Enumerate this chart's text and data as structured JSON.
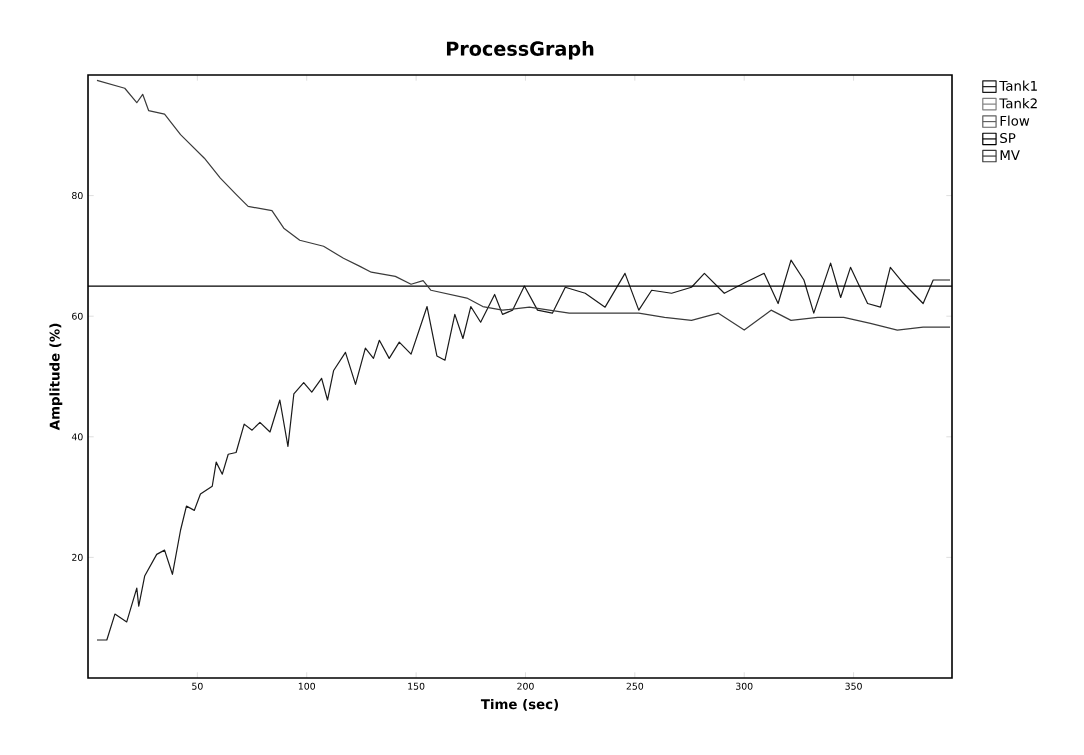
{
  "chart_data": {
    "type": "line",
    "title": "ProcessGraph",
    "xlabel": "Time (sec)",
    "ylabel": "Amplitude (%)",
    "xlim": [
      0,
      395
    ],
    "ylim": [
      0,
      100
    ],
    "xticks": [
      50,
      100,
      150,
      200,
      250,
      300,
      350
    ],
    "yticks": [
      20,
      40,
      60,
      80
    ],
    "legend": "top right",
    "series": [
      {
        "name": "Tank1",
        "color": "#1a1a1a",
        "x": [
          4.1,
          8.6,
          12.3,
          17.7,
          22.3,
          23.2,
          25.9,
          31.4,
          35,
          38.6,
          42.3,
          45,
          48.6,
          51.4,
          56.8,
          58.6,
          61.4,
          64.1,
          67.7,
          71.4,
          75,
          78.6,
          83.2,
          87.7,
          91.4,
          94.1,
          98.6,
          102.3,
          106.8,
          109.5,
          112.3,
          117.7,
          122.3,
          126.8,
          130.5,
          133.2,
          137.7,
          142.3,
          147.7,
          155,
          159.5,
          163.2,
          167.7,
          171.4,
          175,
          179.5,
          185.9,
          189.5,
          194.1,
          199.5,
          205.5,
          212.3,
          218.2,
          227.3,
          236.4,
          245.5,
          251.8,
          257.7,
          266.8,
          275.9,
          281.8,
          290.9,
          300,
          309.1,
          315.5,
          321.4,
          327.3,
          331.8,
          339.5,
          344.1,
          348.6,
          356.4,
          362.3,
          366.8,
          372.7,
          381.8,
          386.4,
          394.1
        ],
        "values": [
          6.3,
          6.3,
          10.6,
          9.3,
          14.9,
          11.9,
          16.9,
          20.5,
          21.2,
          17.2,
          24.5,
          28.5,
          27.8,
          30.5,
          31.8,
          35.8,
          33.8,
          37.1,
          37.4,
          42.1,
          41.1,
          42.4,
          40.8,
          46.1,
          38.4,
          47.1,
          49,
          47.4,
          49.7,
          46.1,
          51,
          54,
          48.7,
          54.7,
          53,
          56,
          53,
          55.7,
          53.7,
          61.6,
          53.4,
          52.7,
          60.3,
          56.3,
          61.6,
          59,
          63.6,
          60.3,
          61,
          65,
          61,
          60.5,
          64.8,
          63.8,
          61.5,
          67.1,
          61,
          64.3,
          63.8,
          64.8,
          67.1,
          63.8,
          65.5,
          67.1,
          62.1,
          69.3,
          66,
          60.5,
          68.8,
          63.1,
          68.1,
          62.1,
          61.5,
          68.1,
          65.5,
          62.1,
          66,
          66
        ]
      },
      {
        "name": "Tank2",
        "color": "#808080"
      },
      {
        "name": "Flow",
        "color": "#606060"
      },
      {
        "name": "SP",
        "color": "#000000",
        "x": [
          0,
          395
        ],
        "values": [
          65,
          65
        ]
      },
      {
        "name": "MV",
        "color": "#3a3a3a",
        "x": [
          4.1,
          16.8,
          22.3,
          25,
          27.7,
          35,
          42.3,
          53.2,
          60.5,
          67.7,
          73.2,
          84.1,
          89.5,
          96.8,
          107.7,
          116.8,
          124.1,
          129.5,
          140.5,
          147.7,
          153.2,
          156.8,
          173.2,
          180.5,
          189.5,
          201.8,
          220,
          251.8,
          263.6,
          275.9,
          288.2,
          300,
          312.3,
          321.4,
          333.6,
          345.5,
          357.7,
          370,
          381.8,
          394.1
        ],
        "values": [
          99.1,
          97.8,
          95.4,
          96.8,
          94.1,
          93.5,
          90.1,
          86.2,
          82.9,
          80.2,
          78.2,
          77.5,
          74.6,
          72.6,
          71.6,
          69.6,
          68.3,
          67.3,
          66.6,
          65.3,
          65.9,
          64.3,
          63,
          61.6,
          61,
          61.5,
          60.5,
          60.5,
          59.8,
          59.3,
          60.5,
          57.7,
          61,
          59.3,
          59.8,
          59.8,
          58.8,
          57.7,
          58.2,
          58.2
        ]
      }
    ]
  }
}
